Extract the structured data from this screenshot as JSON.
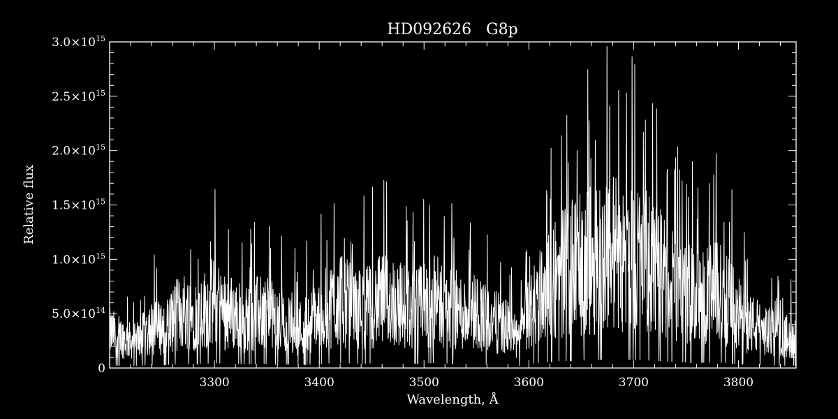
{
  "chart_data": {
    "type": "line",
    "title": "HD092626   G8p",
    "xlabel": "Wavelength, Å",
    "ylabel": "Relative flux",
    "xlim": [
      3200,
      3855
    ],
    "ylim": [
      0,
      3000000000000000.0
    ],
    "xticks": [
      3300,
      3400,
      3500,
      3600,
      3700,
      3800
    ],
    "yticks": [
      {
        "value": 3000000000000000.0,
        "mantissa": "3.0×10",
        "exp": "15"
      },
      {
        "value": 2500000000000000.0,
        "mantissa": "2.5×10",
        "exp": "15"
      },
      {
        "value": 2000000000000000.0,
        "mantissa": "2.0×10",
        "exp": "15"
      },
      {
        "value": 1500000000000000.0,
        "mantissa": "1.5×10",
        "exp": "15"
      },
      {
        "value": 1000000000000000.0,
        "mantissa": "1.0×10",
        "exp": "15"
      },
      {
        "value": 500000000000000.0,
        "mantissa": "5.0×10",
        "exp": "14"
      },
      {
        "value": 0,
        "mantissa": "0",
        "exp": ""
      }
    ],
    "grid": false,
    "colors": {
      "background": "#000000",
      "foreground": "#ffffff"
    },
    "series": [
      {
        "x": [
          3200,
          3210,
          3220,
          3230,
          3240,
          3250,
          3260,
          3270,
          3280,
          3290,
          3300,
          3310,
          3320,
          3330,
          3340,
          3350,
          3360,
          3370,
          3380,
          3390,
          3400,
          3410,
          3420,
          3430,
          3440,
          3450,
          3460,
          3470,
          3480,
          3490,
          3500,
          3510,
          3520,
          3530,
          3540,
          3550,
          3560,
          3570,
          3580,
          3590,
          3600,
          3610,
          3620,
          3630,
          3640,
          3650,
          3660,
          3670,
          3680,
          3690,
          3700,
          3710,
          3720,
          3730,
          3740,
          3750,
          3760,
          3770,
          3780,
          3790,
          3800,
          3810,
          3820,
          3830,
          3840,
          3850,
          3855
        ],
        "y": [
          400000000000000.0,
          350000000000000.0,
          300000000000000.0,
          350000000000000.0,
          450000000000000.0,
          450000000000000.0,
          550000000000000.0,
          650000000000000.0,
          600000000000000.0,
          650000000000000.0,
          750000000000000.0,
          650000000000000.0,
          600000000000000.0,
          550000000000000.0,
          600000000000000.0,
          650000000000000.0,
          500000000000000.0,
          550000000000000.0,
          450000000000000.0,
          500000000000000.0,
          600000000000000.0,
          700000000000000.0,
          750000000000000.0,
          700000000000000.0,
          650000000000000.0,
          700000000000000.0,
          750000000000000.0,
          750000000000000.0,
          700000000000000.0,
          650000000000000.0,
          700000000000000.0,
          750000000000000.0,
          700000000000000.0,
          650000000000000.0,
          600000000000000.0,
          650000000000000.0,
          550000000000000.0,
          500000000000000.0,
          450000000000000.0,
          300000000000000.0,
          600000000000000.0,
          800000000000000.0,
          950000000000000.0,
          1050000000000000.0,
          1100000000000000.0,
          1150000000000000.0,
          1200000000000000.0,
          1250000000000000.0,
          1300000000000000.0,
          1300000000000000.0,
          1250000000000000.0,
          1200000000000000.0,
          1100000000000000.0,
          1000000000000000.0,
          900000000000000.0,
          850000000000000.0,
          800000000000000.0,
          800000000000000.0,
          850000000000000.0,
          750000000000000.0,
          600000000000000.0,
          500000000000000.0,
          450000000000000.0,
          400000000000000.0,
          350000000000000.0,
          350000000000000.0,
          350000000000000.0
        ]
      }
    ]
  }
}
